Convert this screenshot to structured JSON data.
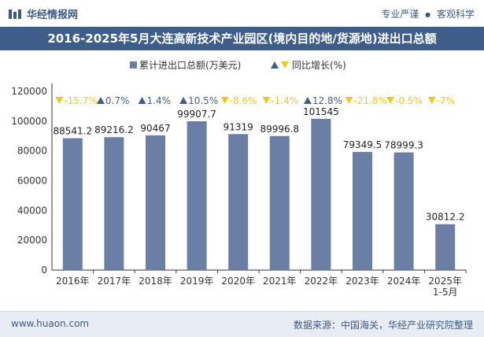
{
  "header": {
    "brand": "华经情报网",
    "tag1": "专业严谨",
    "tag2": "客观科学"
  },
  "title": "2016-2025年5月大连高新技术产业园区(境内目的地/货源地)进出口总额",
  "footer": {
    "site": "www.huaon.com",
    "source": "数据来源：中国海关，华经产业研究院整理"
  },
  "colors": {
    "bar": "#6b7fa6",
    "up": "#3d5f8f",
    "down": "#f2c81a",
    "title_bg": "#3e5d88"
  },
  "chart_data": {
    "type": "bar",
    "categories": [
      "2016年",
      "2017年",
      "2018年",
      "2019年",
      "2020年",
      "2021年",
      "2022年",
      "2023年",
      "2024年",
      "2025年\n1-5月"
    ],
    "series": [
      {
        "name": "累计进出口总额(万美元)",
        "values": [
          88541.2,
          89216.2,
          90467,
          99907.7,
          91319,
          89996.8,
          101545,
          79349.5,
          78999.3,
          30812.2
        ],
        "labels": [
          "88541.2",
          "89216.2",
          "90467",
          "99907.7",
          "91319",
          "89996.8",
          "101545",
          "79349.5",
          "78999.3",
          "30812.2"
        ]
      },
      {
        "name": "同比增长(%)",
        "values": [
          -15.7,
          0.7,
          1.4,
          10.5,
          -8.6,
          -1.4,
          12.8,
          -21.8,
          -0.5,
          -7
        ],
        "labels": [
          "-15.7%",
          "0.7%",
          "1.4%",
          "10.5%",
          "-8.6%",
          "-1.4%",
          "12.8%",
          "-21.8%",
          "-0.5%",
          "-7%"
        ]
      }
    ],
    "yticks": [
      "0",
      "20000",
      "40000",
      "60000",
      "80000",
      "100000",
      "120000"
    ],
    "ylim": [
      0,
      120000
    ],
    "legend": [
      "累计进出口总额(万美元)",
      "同比增长(%)"
    ],
    "legend_position": "top-left"
  }
}
